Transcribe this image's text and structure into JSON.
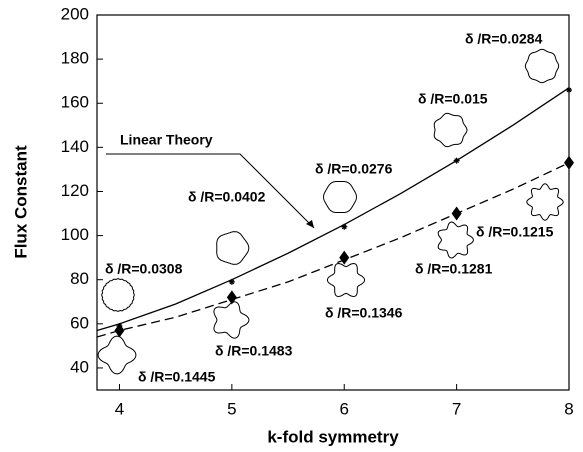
{
  "chart_data": {
    "type": "scatter",
    "x_label": "k-fold symmetry",
    "y_label": "Flux Constant",
    "xlim": [
      3.8,
      8
    ],
    "ylim": [
      30,
      200
    ],
    "xticks": [
      4,
      5,
      6,
      7,
      8
    ],
    "yticks": [
      40,
      60,
      80,
      100,
      120,
      140,
      160,
      180,
      200
    ],
    "series": [
      {
        "marker": "star",
        "color": "#000000",
        "x": [
          4,
          5,
          6,
          7,
          8
        ],
        "values": [
          59,
          79,
          104,
          134,
          166
        ]
      },
      {
        "marker": "diamond",
        "color": "#000000",
        "x": [
          4,
          5,
          6,
          7,
          8
        ],
        "values": [
          57,
          72,
          90,
          110,
          133
        ]
      }
    ],
    "lines": [
      {
        "style": "solid",
        "color": "#000000",
        "x": [
          3.8,
          4,
          4.5,
          5,
          5.5,
          6,
          6.5,
          7,
          7.5,
          8
        ],
        "values": [
          57,
          60,
          69,
          80,
          92,
          105,
          119,
          134,
          150,
          167
        ]
      },
      {
        "style": "dashed",
        "color": "#000000",
        "x": [
          3.8,
          4,
          4.5,
          5,
          5.5,
          6,
          6.5,
          7,
          7.5,
          8
        ],
        "values": [
          54,
          57,
          63,
          71,
          79,
          89,
          99,
          110,
          121,
          133
        ]
      }
    ],
    "curve_label": "Linear Theory",
    "annotations": [
      "δ /R=0.0308",
      "δ /R=0.1445",
      "δ /R=0.0402",
      "δ /R=0.1483",
      "δ /R=0.0276",
      "δ /R=0.1346",
      "δ /R=0.015",
      "δ /R=0.1281",
      "δ /R=0.0284",
      "δ /R=0.1215"
    ]
  }
}
